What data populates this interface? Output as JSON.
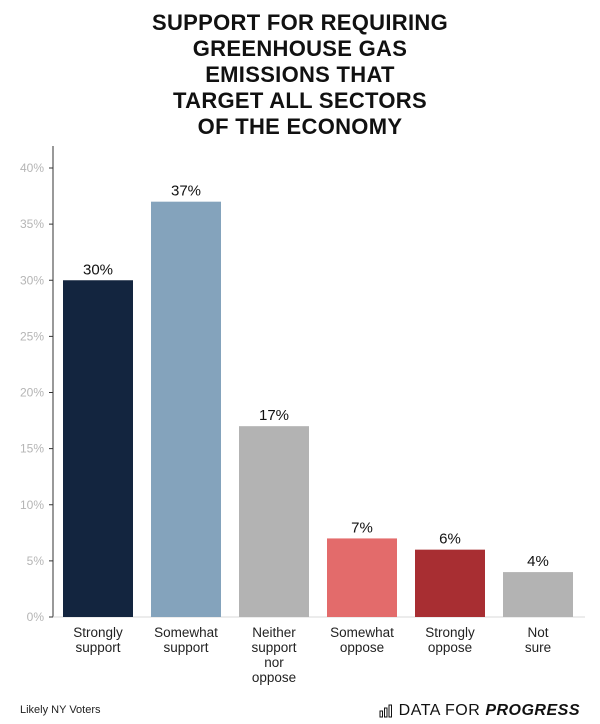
{
  "title_lines": [
    "SUPPORT FOR REQUIRING",
    "GREENHOUSE GAS",
    "EMISSIONS THAT",
    "TARGET ALL SECTORS",
    "OF THE ECONOMY"
  ],
  "footer": {
    "note": "Likely NY Voters",
    "brand_prefix": "DATA FOR",
    "brand_emphasis": "PROGRESS"
  },
  "chart_data": {
    "type": "bar",
    "title": "Support for requiring greenhouse gas emissions that target all sectors of the economy",
    "categories": [
      [
        "Strongly",
        "support"
      ],
      [
        "Somewhat",
        "support"
      ],
      [
        "Neither",
        "support",
        "nor",
        "oppose"
      ],
      [
        "Somewhat",
        "oppose"
      ],
      [
        "Strongly",
        "oppose"
      ],
      [
        "Not",
        "sure"
      ]
    ],
    "values": [
      30,
      37,
      17,
      7,
      6,
      4
    ],
    "value_labels": [
      "30%",
      "37%",
      "17%",
      "7%",
      "6%",
      "4%"
    ],
    "colors": [
      "#13253f",
      "#84a3bc",
      "#b3b3b3",
      "#e36b6b",
      "#a82e32",
      "#b3b3b3"
    ],
    "ylim": [
      0,
      40
    ],
    "yticks": [
      0,
      5,
      10,
      15,
      20,
      25,
      30,
      35,
      40
    ],
    "ytick_labels": [
      "0%",
      "5%",
      "10%",
      "15%",
      "20%",
      "25%",
      "30%",
      "35%",
      "40%"
    ],
    "xlabel": "",
    "ylabel": "",
    "grid": false,
    "legend": "none"
  }
}
